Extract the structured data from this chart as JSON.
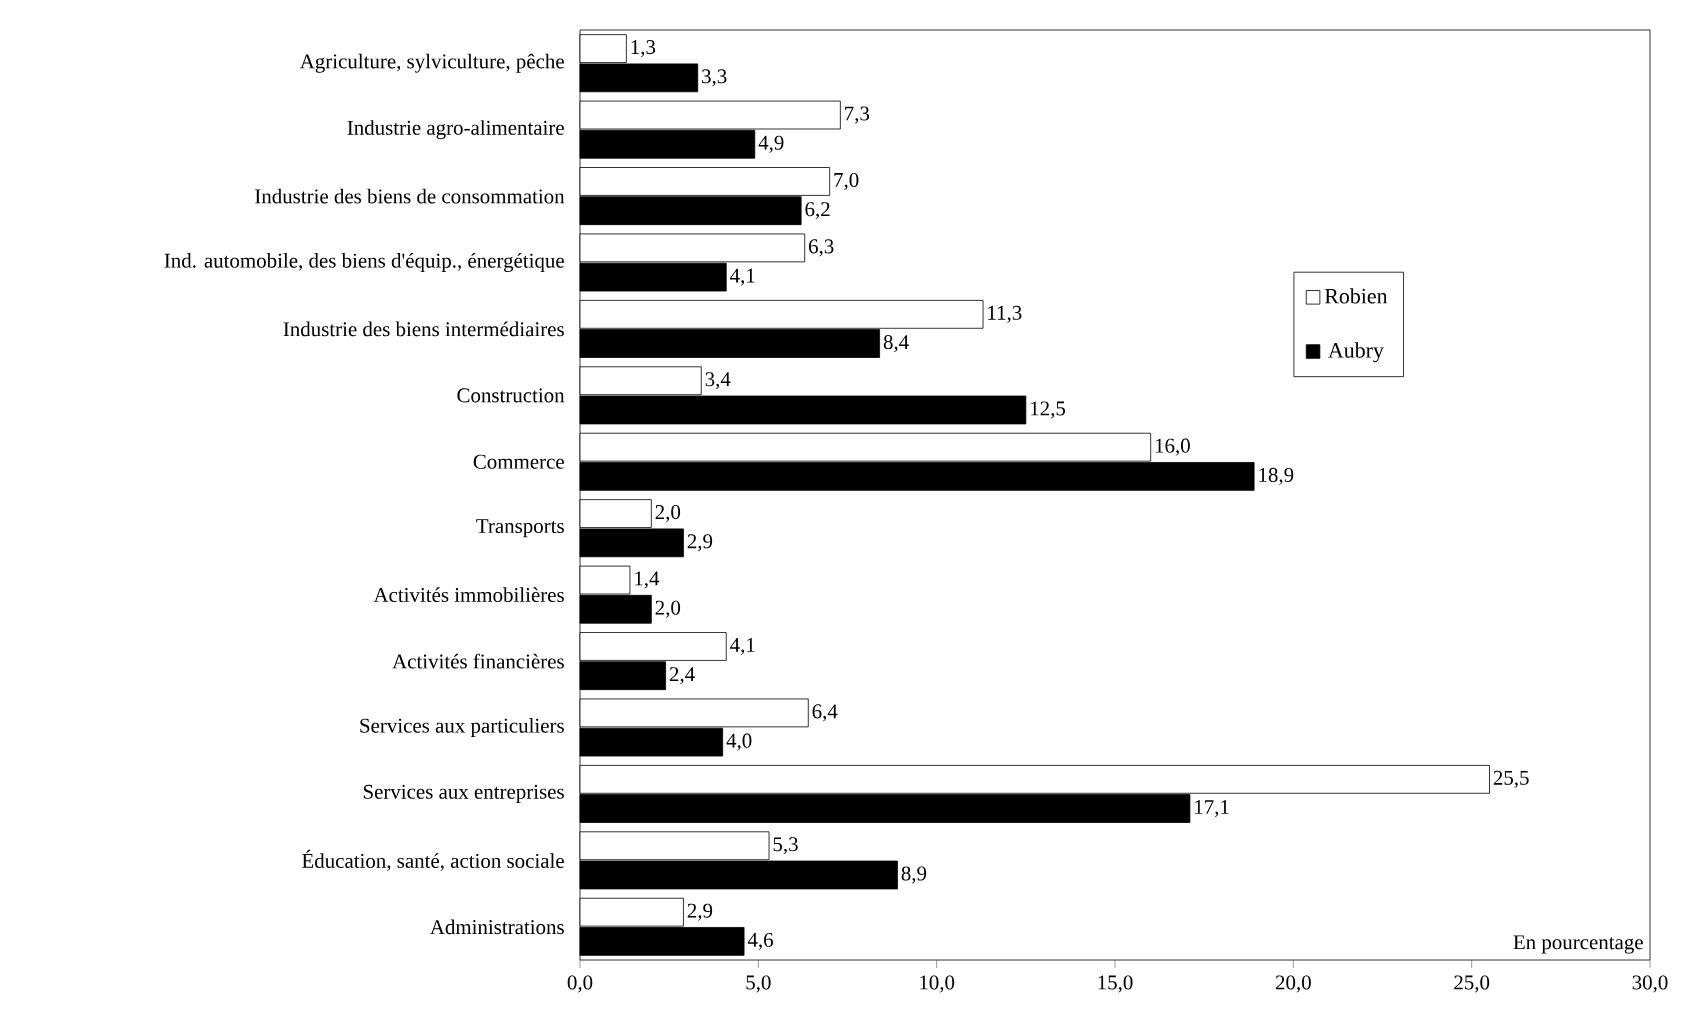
{
  "chart_data": {
    "type": "bar",
    "orientation": "horizontal",
    "legend": "top right",
    "categories": [
      "Agriculture, sylviculture, pêche",
      "Industrie agro-alimentaire",
      "Industrie des biens de consommation",
      "Ind. automobile, des biens d'équip., énergétique",
      "Industrie des biens intermédiaires",
      "Construction",
      "Commerce",
      "Transports",
      "Activités immobilières",
      "Activités financières",
      "Services aux particuliers",
      "Services aux entreprises",
      "Éducation, santé, action sociale",
      "Administrations"
    ],
    "series": [
      {
        "name": "Robien",
        "color": "#ffffff",
        "values": [
          1.3,
          7.3,
          7.0,
          6.3,
          11.3,
          3.4,
          16.0,
          2.0,
          1.4,
          4.1,
          6.4,
          25.5,
          5.3,
          2.9
        ],
        "value_labels": [
          "1,3",
          "7,3",
          "7,0",
          "6,3",
          "11,3",
          "3,4",
          "16,0",
          "2,0",
          "1,4",
          "4,1",
          "6,4",
          "25,5",
          "5,3",
          "2,9"
        ]
      },
      {
        "name": "Aubry",
        "color": "#000000",
        "values": [
          3.3,
          4.9,
          6.2,
          4.1,
          8.4,
          12.5,
          18.9,
          2.9,
          2.0,
          2.4,
          4.0,
          17.1,
          8.9,
          4.6
        ],
        "value_labels": [
          "3,3",
          "4,9",
          "6,2",
          "4,1",
          "8,4",
          "12,5",
          "18,9",
          "2,9",
          "2,0",
          "2,4",
          "4,0",
          "17,1",
          "8,9",
          "4,6"
        ]
      }
    ],
    "xlim": [
      0,
      30
    ],
    "xticks": [
      {
        "value": 0,
        "label": "0,0"
      },
      {
        "value": 5,
        "label": "5,0"
      },
      {
        "value": 10,
        "label": "10,0"
      },
      {
        "value": 15,
        "label": "15,0"
      },
      {
        "value": 20,
        "label": "20,0"
      },
      {
        "value": 25,
        "label": "25,0"
      },
      {
        "value": 30,
        "label": "30,0"
      }
    ],
    "annotations": [
      "En pourcentage"
    ]
  }
}
